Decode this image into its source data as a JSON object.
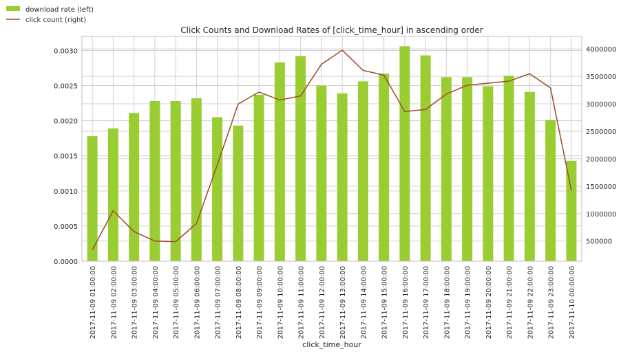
{
  "chart_data": {
    "type": "bar+line",
    "title": "Click Counts and Download Rates of [click_time_hour] in ascending order",
    "xlabel": "click_time_hour",
    "categories": [
      "2017-11-09 01:00:00",
      "2017-11-09 02:00:00",
      "2017-11-09 03:00:00",
      "2017-11-09 04:00:00",
      "2017-11-09 05:00:00",
      "2017-11-09 06:00:00",
      "2017-11-09 07:00:00",
      "2017-11-09 08:00:00",
      "2017-11-09 09:00:00",
      "2017-11-09 10:00:00",
      "2017-11-09 11:00:00",
      "2017-11-09 12:00:00",
      "2017-11-09 13:00:00",
      "2017-11-09 14:00:00",
      "2017-11-09 15:00:00",
      "2017-11-09 16:00:00",
      "2017-11-09 17:00:00",
      "2017-11-09 18:00:00",
      "2017-11-09 19:00:00",
      "2017-11-09 20:00:00",
      "2017-11-09 21:00:00",
      "2017-11-09 22:00:00",
      "2017-11-09 23:00:00",
      "2017-11-10 00:00:00"
    ],
    "series": [
      {
        "name": "download rate (left)",
        "type": "bar",
        "axis": "left",
        "color": "#9acd32",
        "values": [
          0.00178,
          0.00189,
          0.00211,
          0.00228,
          0.00228,
          0.00232,
          0.00205,
          0.00193,
          0.00237,
          0.00283,
          0.00292,
          0.0025,
          0.00239,
          0.00256,
          0.00267,
          0.00306,
          0.00293,
          0.00262,
          0.00262,
          0.00249,
          0.00264,
          0.00241,
          0.00201,
          0.00143
        ]
      },
      {
        "name": "click count (right)",
        "type": "line",
        "axis": "right",
        "color": "#a0522d",
        "values": [
          340000,
          1052000,
          672000,
          500000,
          488000,
          820000,
          1888000,
          2994000,
          3215000,
          3068000,
          3142000,
          3719000,
          3977000,
          3608000,
          3522000,
          2859000,
          2896000,
          3178000,
          3338000,
          3375000,
          3412000,
          3547000,
          3289000,
          1421000
        ]
      }
    ],
    "left_axis": {
      "ylim": [
        0,
        0.0032
      ],
      "ticks": [
        "0.0000",
        "0.0005",
        "0.0010",
        "0.0015",
        "0.0020",
        "0.0025",
        "0.0030"
      ]
    },
    "right_axis": {
      "ylim": [
        133000,
        4227000
      ],
      "ticks": [
        "500000",
        "1000000",
        "1500000",
        "2000000",
        "2500000",
        "3000000",
        "3500000",
        "4000000"
      ]
    },
    "grid": true,
    "legend": "top-left, outside"
  }
}
